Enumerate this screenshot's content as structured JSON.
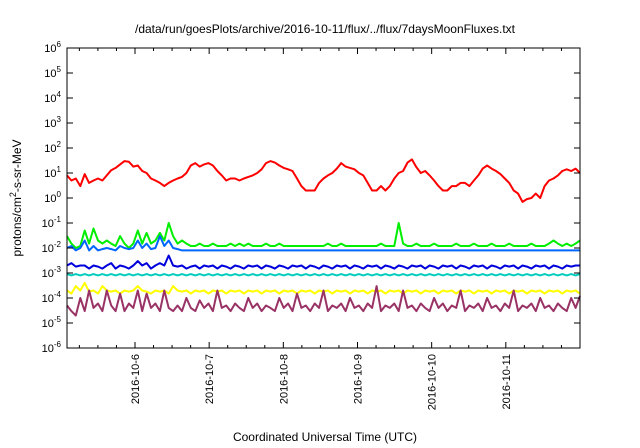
{
  "chart_data": {
    "type": "line",
    "title": "/data/run/goesPlots/archive/2016-10-11/flux/../flux/7daysMoonFluxes.txt",
    "xlabel": "Coordinated Universal Time (UTC)",
    "ylabel": {
      "base": "protons/cm",
      "sup": "2",
      "rest": "-s-sr-MeV"
    },
    "y_scale": "log",
    "ylim": [
      1e-06,
      1000000.0
    ],
    "y_ticks": [
      {
        "value": 1e-06,
        "base": "10",
        "exp": "-6"
      },
      {
        "value": 1e-05,
        "base": "10",
        "exp": "-5"
      },
      {
        "value": 0.0001,
        "base": "10",
        "exp": "-4"
      },
      {
        "value": 0.001,
        "base": "10",
        "exp": "-3"
      },
      {
        "value": 0.01,
        "base": "10",
        "exp": "-2"
      },
      {
        "value": 0.1,
        "base": "10",
        "exp": "-1"
      },
      {
        "value": 1,
        "base": "10",
        "exp": "0"
      },
      {
        "value": 10,
        "base": "10",
        "exp": "1"
      },
      {
        "value": 100,
        "base": "10",
        "exp": "2"
      },
      {
        "value": 1000,
        "base": "10",
        "exp": "3"
      },
      {
        "value": 10000,
        "base": "10",
        "exp": "4"
      },
      {
        "value": 100000,
        "base": "10",
        "exp": "5"
      },
      {
        "value": 1000000,
        "base": "10",
        "exp": "6"
      }
    ],
    "x_range": [
      "2016-10-05 02:00",
      "2016-10-12 00:00"
    ],
    "x_ticks": [
      "2016-10-6",
      "2016-10-7",
      "2016-10-8",
      "2016-10-9",
      "2016-10-10",
      "2016-10-11"
    ],
    "x_tick_dates": [
      "2016-10-06",
      "2016-10-07",
      "2016-10-08",
      "2016-10-09",
      "2016-10-10",
      "2016-10-11"
    ],
    "grid": false,
    "legend": "none",
    "series": [
      {
        "color": "#ff0000",
        "values": [
          8,
          5,
          6,
          3,
          9,
          4,
          5,
          6,
          5,
          8,
          13,
          16,
          22,
          30,
          28,
          18,
          20,
          12,
          10,
          6,
          5,
          4,
          3,
          4,
          5,
          6,
          7,
          10,
          20,
          25,
          18,
          22,
          25,
          20,
          12,
          8,
          5,
          6,
          6,
          5,
          6,
          7,
          8,
          10,
          14,
          25,
          30,
          26,
          20,
          16,
          14,
          12,
          6,
          3,
          2,
          2,
          2,
          4,
          6,
          8,
          10,
          15,
          25,
          18,
          16,
          14,
          10,
          8,
          4,
          2,
          2,
          3,
          2,
          3,
          6,
          10,
          12,
          26,
          35,
          17,
          10,
          12,
          8,
          5,
          3,
          2,
          2,
          3,
          3,
          4,
          4,
          3,
          5,
          8,
          15,
          20,
          15,
          12,
          9,
          6,
          4,
          2,
          1.5,
          0.7,
          0.9,
          1,
          1.5,
          1,
          3,
          5,
          6,
          8,
          12,
          14,
          12,
          15,
          10
        ]
      },
      {
        "color": "#00ee00",
        "values": [
          0.03,
          0.015,
          0.01,
          0.012,
          0.05,
          0.015,
          0.06,
          0.02,
          0.015,
          0.02,
          0.015,
          0.012,
          0.03,
          0.015,
          0.01,
          0.015,
          0.05,
          0.015,
          0.04,
          0.015,
          0.02,
          0.04,
          0.02,
          0.1,
          0.03,
          0.015,
          0.02,
          0.015,
          0.012,
          0.012,
          0.015,
          0.012,
          0.012,
          0.015,
          0.012,
          0.012,
          0.012,
          0.015,
          0.012,
          0.015,
          0.012,
          0.015,
          0.012,
          0.012,
          0.012,
          0.015,
          0.012,
          0.012,
          0.015,
          0.012,
          0.012,
          0.012,
          0.012,
          0.012,
          0.012,
          0.012,
          0.012,
          0.012,
          0.012,
          0.015,
          0.012,
          0.012,
          0.015,
          0.012,
          0.012,
          0.012,
          0.012,
          0.012,
          0.012,
          0.012,
          0.012,
          0.015,
          0.012,
          0.012,
          0.012,
          0.1,
          0.015,
          0.012,
          0.012,
          0.015,
          0.012,
          0.012,
          0.012,
          0.015,
          0.012,
          0.012,
          0.012,
          0.012,
          0.015,
          0.012,
          0.012,
          0.012,
          0.015,
          0.012,
          0.012,
          0.012,
          0.015,
          0.012,
          0.012,
          0.012,
          0.015,
          0.012,
          0.012,
          0.012,
          0.012,
          0.015,
          0.012,
          0.012,
          0.012,
          0.015,
          0.02,
          0.015,
          0.012,
          0.015,
          0.012,
          0.015,
          0.02
        ]
      },
      {
        "color": "#0066ff",
        "values": [
          0.01,
          0.012,
          0.008,
          0.01,
          0.02,
          0.008,
          0.012,
          0.008,
          0.009,
          0.01,
          0.009,
          0.008,
          0.012,
          0.01,
          0.009,
          0.01,
          0.02,
          0.01,
          0.015,
          0.009,
          0.01,
          0.03,
          0.012,
          0.02,
          0.01,
          0.009,
          0.008,
          0.008,
          0.008,
          0.008,
          0.008,
          0.008,
          0.008,
          0.008,
          0.008,
          0.008,
          0.008,
          0.008,
          0.008,
          0.008,
          0.008,
          0.008,
          0.008,
          0.008,
          0.008,
          0.008,
          0.008,
          0.008,
          0.008,
          0.008,
          0.008,
          0.008,
          0.008,
          0.008,
          0.008,
          0.008,
          0.008,
          0.008,
          0.008,
          0.008,
          0.008,
          0.008,
          0.008,
          0.008,
          0.008,
          0.008,
          0.008,
          0.008,
          0.008,
          0.008,
          0.008,
          0.008,
          0.008,
          0.008,
          0.008,
          0.008,
          0.008,
          0.008,
          0.008,
          0.008,
          0.008,
          0.008,
          0.008,
          0.008,
          0.008,
          0.008,
          0.008,
          0.008,
          0.008,
          0.008,
          0.008,
          0.008,
          0.008,
          0.008,
          0.008,
          0.008,
          0.008,
          0.008,
          0.008,
          0.008,
          0.008,
          0.008,
          0.008,
          0.008,
          0.008,
          0.008,
          0.008,
          0.008,
          0.008,
          0.008,
          0.008,
          0.008,
          0.008,
          0.008,
          0.008,
          0.008,
          0.008
        ]
      },
      {
        "color": "#0000dd",
        "values": [
          0.002,
          0.0025,
          0.0018,
          0.002,
          0.002,
          0.0015,
          0.002,
          0.0018,
          0.0015,
          0.002,
          0.0025,
          0.0015,
          0.002,
          0.0018,
          0.0015,
          0.002,
          0.003,
          0.002,
          0.0025,
          0.0015,
          0.002,
          0.0025,
          0.002,
          0.005,
          0.002,
          0.0018,
          0.002,
          0.0015,
          0.0018,
          0.002,
          0.0015,
          0.002,
          0.0018,
          0.002,
          0.0015,
          0.002,
          0.0018,
          0.0015,
          0.002,
          0.0018,
          0.0015,
          0.002,
          0.0018,
          0.002,
          0.0015,
          0.002,
          0.0018,
          0.0015,
          0.002,
          0.0018,
          0.0015,
          0.002,
          0.0018,
          0.002,
          0.0015,
          0.002,
          0.0018,
          0.0015,
          0.002,
          0.0018,
          0.0015,
          0.002,
          0.0018,
          0.002,
          0.0015,
          0.002,
          0.0018,
          0.0015,
          0.002,
          0.0018,
          0.002,
          0.0015,
          0.002,
          0.0018,
          0.0015,
          0.002,
          0.0018,
          0.0015,
          0.002,
          0.0018,
          0.002,
          0.0015,
          0.002,
          0.0018,
          0.0015,
          0.002,
          0.0018,
          0.002,
          0.0015,
          0.002,
          0.0018,
          0.0015,
          0.002,
          0.0018,
          0.002,
          0.0015,
          0.002,
          0.0018,
          0.0015,
          0.002,
          0.0018,
          0.002,
          0.0015,
          0.002,
          0.0018,
          0.0015,
          0.002,
          0.0018,
          0.002,
          0.0015,
          0.002,
          0.0018,
          0.0015,
          0.002,
          0.0018,
          0.002,
          0.002
        ]
      },
      {
        "color": "#00ccbb",
        "values": [
          0.0009,
          0.0008,
          0.0009,
          0.0008,
          0.0009,
          0.0008,
          0.0009,
          0.0008,
          0.0009,
          0.0008,
          0.0009,
          0.0008,
          0.0009,
          0.0008,
          0.0009,
          0.0008,
          0.0009,
          0.0008,
          0.0009,
          0.0008,
          0.0009,
          0.0008,
          0.0009,
          0.0008,
          0.0009,
          0.0008,
          0.0009,
          0.0008,
          0.0009,
          0.0008,
          0.0009,
          0.0008,
          0.0009,
          0.0008,
          0.0009,
          0.0008,
          0.0009,
          0.0008,
          0.0009,
          0.0008,
          0.0009,
          0.0008,
          0.0009,
          0.0008,
          0.0009,
          0.0008,
          0.0009,
          0.0008,
          0.0009,
          0.0008,
          0.0009,
          0.0008,
          0.0009,
          0.0008,
          0.0009,
          0.0008,
          0.0009,
          0.0008,
          0.0009,
          0.0008,
          0.0009,
          0.0008,
          0.0009,
          0.0008,
          0.0009,
          0.0008,
          0.0009,
          0.0008,
          0.0009,
          0.0008,
          0.0009,
          0.0008,
          0.0009,
          0.0008,
          0.0009,
          0.0008,
          0.0009,
          0.0008,
          0.0009,
          0.0008,
          0.0009,
          0.0008,
          0.0009,
          0.0008,
          0.0009,
          0.0008,
          0.0009,
          0.0008,
          0.0009,
          0.0008,
          0.0009,
          0.0008,
          0.0009,
          0.0008,
          0.0009,
          0.0008,
          0.0009,
          0.0008,
          0.0009,
          0.0008,
          0.0009,
          0.0008,
          0.0009,
          0.0008,
          0.0009,
          0.0008,
          0.0009,
          0.0008,
          0.0009,
          0.0008,
          0.0009,
          0.0008,
          0.0009,
          0.0008,
          0.0009,
          0.0008,
          0.0009
        ]
      },
      {
        "color": "#ffff00",
        "values": [
          0.0002,
          0.00015,
          0.0003,
          0.0002,
          0.0004,
          0.00018,
          0.0002,
          0.00015,
          0.0003,
          0.0002,
          0.00018,
          0.0002,
          0.00015,
          0.0002,
          0.00018,
          0.0002,
          0.0003,
          0.0002,
          0.00018,
          0.00015,
          0.0002,
          0.00018,
          0.0002,
          0.00015,
          0.0003,
          0.0002,
          0.00018,
          0.0002,
          0.00015,
          0.0002,
          0.00018,
          0.0002,
          0.00015,
          0.0002,
          0.00018,
          0.0002,
          0.00015,
          0.0002,
          0.00018,
          0.0002,
          0.00015,
          0.0002,
          0.00018,
          0.0002,
          0.00015,
          0.0002,
          0.00018,
          0.0002,
          0.00015,
          0.0002,
          0.00018,
          0.0002,
          0.00015,
          0.0002,
          0.00018,
          0.0002,
          0.00015,
          0.0002,
          0.00018,
          0.0002,
          0.00015,
          0.0002,
          0.00018,
          0.0002,
          0.00015,
          0.0002,
          0.00018,
          0.0002,
          0.00015,
          0.0002,
          0.00018,
          0.0002,
          0.00015,
          0.0002,
          0.00018,
          0.0002,
          0.00015,
          0.0002,
          0.00018,
          0.0002,
          0.00015,
          0.0002,
          0.00018,
          0.0002,
          0.00015,
          0.0002,
          0.00018,
          0.0002,
          0.00015,
          0.0002,
          0.00018,
          0.0002,
          0.00015,
          0.0002,
          0.00018,
          0.0002,
          0.00015,
          0.0002,
          0.00018,
          0.0002,
          0.00015,
          0.0002,
          0.00018,
          0.0002,
          0.00015,
          0.0002,
          0.00018,
          0.0002,
          0.00015,
          0.0002,
          0.00018,
          0.0002,
          0.00015,
          0.0002,
          0.00018,
          0.0002,
          0.00015
        ]
      },
      {
        "color": "#993366",
        "values": [
          5e-05,
          3e-05,
          2e-05,
          0.0001,
          3e-05,
          0.0002,
          4e-05,
          6e-05,
          3e-05,
          0.0002,
          5e-05,
          3e-05,
          0.00015,
          3e-05,
          6e-05,
          4e-05,
          0.0002,
          3e-05,
          0.00015,
          4e-05,
          6e-05,
          3e-05,
          0.0002,
          4e-05,
          3e-05,
          5e-05,
          3e-05,
          0.0001,
          4e-05,
          3e-05,
          8e-05,
          4e-05,
          6e-05,
          3e-05,
          0.0002,
          4e-05,
          5e-05,
          3e-05,
          6e-05,
          4e-05,
          3e-05,
          0.0001,
          4e-05,
          6e-05,
          3e-05,
          5e-05,
          4e-05,
          3e-05,
          0.0001,
          4e-05,
          6e-05,
          3e-05,
          0.00015,
          4e-05,
          5e-05,
          3e-05,
          6e-05,
          4e-05,
          0.0002,
          3e-05,
          5e-05,
          4e-05,
          6e-05,
          3e-05,
          0.0001,
          4e-05,
          5e-05,
          3e-05,
          6e-05,
          4e-05,
          0.0003,
          3e-05,
          5e-05,
          4e-05,
          6e-05,
          3e-05,
          0.0002,
          4e-05,
          5e-05,
          3e-05,
          6e-05,
          4e-05,
          3e-05,
          0.0001,
          4e-05,
          6e-05,
          3e-05,
          5e-05,
          4e-05,
          0.0002,
          3e-05,
          5e-05,
          4e-05,
          6e-05,
          3e-05,
          0.0001,
          4e-05,
          5e-05,
          3e-05,
          6e-05,
          4e-05,
          0.0002,
          3e-05,
          5e-05,
          4e-05,
          6e-05,
          3e-05,
          0.0001,
          4e-05,
          5e-05,
          3e-05,
          6e-05,
          4e-05,
          3e-05,
          0.0001,
          4e-05,
          0.00012
        ]
      }
    ]
  }
}
